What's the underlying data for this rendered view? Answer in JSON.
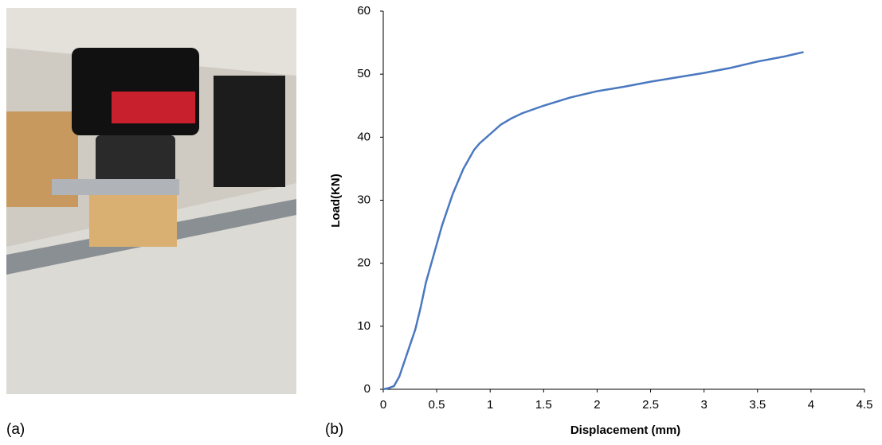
{
  "panel_labels": [
    "(a)",
    "(b)"
  ],
  "chart_data": {
    "type": "line",
    "x_label": "Displacement (mm)",
    "y_label": "Load(KN)",
    "x": [
      0,
      0.05,
      0.1,
      0.15,
      0.2,
      0.25,
      0.3,
      0.35,
      0.4,
      0.45,
      0.5,
      0.55,
      0.6,
      0.65,
      0.7,
      0.75,
      0.8,
      0.85,
      0.9,
      1.0,
      1.1,
      1.2,
      1.3,
      1.5,
      1.75,
      2,
      2.25,
      2.5,
      2.75,
      3,
      3.25,
      3.5,
      3.75,
      3.93
    ],
    "values": [
      0,
      0.2,
      0.5,
      2,
      4.5,
      7,
      9.5,
      13,
      17,
      20,
      23,
      26,
      28.5,
      31,
      33,
      35,
      36.5,
      38,
      39,
      40.5,
      42,
      43,
      43.8,
      45,
      46.3,
      47.3,
      48,
      48.8,
      49.5,
      50.2,
      51,
      52,
      52.8,
      53.5
    ],
    "color": "#4a78c0",
    "xlim": [
      0,
      4.5
    ],
    "xticks": [
      0,
      0.5,
      1,
      1.5,
      2,
      2.5,
      3,
      3.5,
      4,
      4.5
    ],
    "ylim": [
      0,
      60
    ],
    "yticks": [
      0,
      10,
      20,
      30,
      40,
      50,
      60
    ],
    "grid": false
  }
}
